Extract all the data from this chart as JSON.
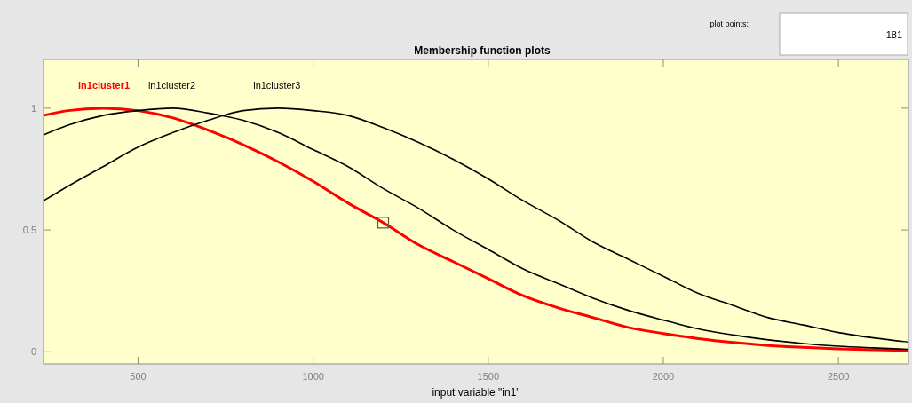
{
  "chart_data": {
    "type": "line",
    "title": "Membership function plots",
    "xlabel": "input variable \"in1\"",
    "x": [
      230,
      300,
      400,
      500,
      600,
      700,
      800,
      900,
      1000,
      1100,
      1200,
      1300,
      1400,
      1500,
      1600,
      1700,
      1800,
      1900,
      2000,
      2100,
      2200,
      2300,
      2400,
      2500,
      2600,
      2700
    ],
    "series": [
      {
        "name": "in1cluster1",
        "color": "#ff0000",
        "values": [
          0.97,
          0.99,
          1.0,
          0.99,
          0.96,
          0.91,
          0.85,
          0.78,
          0.7,
          0.61,
          0.53,
          0.44,
          0.37,
          0.3,
          0.23,
          0.18,
          0.14,
          0.1,
          0.075,
          0.054,
          0.038,
          0.026,
          0.018,
          0.012,
          0.008,
          0.005
        ]
      },
      {
        "name": "in1cluster2",
        "color": "#000000",
        "values": [
          0.89,
          0.93,
          0.97,
          0.99,
          1.0,
          0.98,
          0.95,
          0.9,
          0.83,
          0.76,
          0.67,
          0.59,
          0.5,
          0.42,
          0.34,
          0.28,
          0.22,
          0.17,
          0.13,
          0.094,
          0.069,
          0.049,
          0.034,
          0.023,
          0.016,
          0.01
        ]
      },
      {
        "name": "in1cluster3",
        "color": "#000000",
        "values": [
          0.62,
          0.68,
          0.76,
          0.84,
          0.9,
          0.95,
          0.99,
          1.0,
          0.99,
          0.97,
          0.92,
          0.86,
          0.79,
          0.71,
          0.62,
          0.54,
          0.45,
          0.38,
          0.31,
          0.24,
          0.19,
          0.14,
          0.11,
          0.079,
          0.057,
          0.04
        ]
      }
    ],
    "xlim": [
      230,
      2700
    ],
    "ylim": [
      -0.05,
      1.2
    ],
    "xticks": [
      500,
      1000,
      1500,
      2000,
      2500
    ],
    "yticks": [
      0,
      0.5,
      1
    ],
    "grid": false,
    "legend": false,
    "marker": "none",
    "line_style": "solid",
    "annotations": [
      "plot points:",
      "181"
    ]
  }
}
